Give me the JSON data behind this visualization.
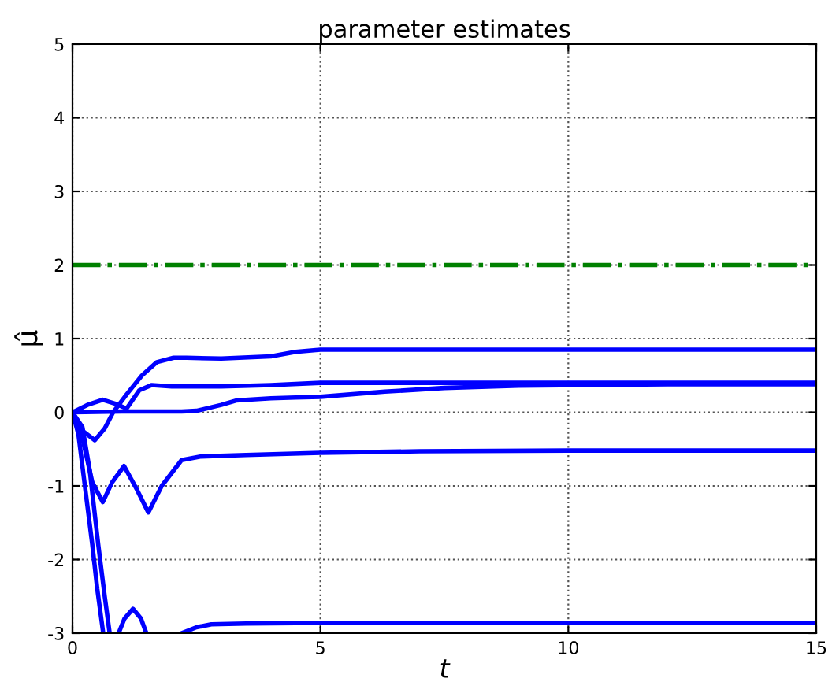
{
  "chart_data": {
    "type": "line",
    "title": "parameter estimates",
    "xlabel": "t",
    "ylabel": "μ̂",
    "xlim": [
      0,
      15
    ],
    "ylim": [
      -3,
      5
    ],
    "xticks": [
      0,
      5,
      10,
      15
    ],
    "yticks": [
      -3,
      -2,
      -1,
      0,
      1,
      2,
      3,
      4,
      5
    ],
    "grid": true,
    "line_style": "solid",
    "marker": "none",
    "ref_lines": [
      {
        "axis": "y",
        "value": 2,
        "color": "#008000",
        "line_style": "dashdot"
      }
    ],
    "series": [
      {
        "color": "#0000ff",
        "x": [
          0,
          0.2,
          0.45,
          0.65,
          0.82,
          1.1,
          1.4,
          1.7,
          2.04,
          2.3,
          3,
          4,
          4.5,
          5,
          7,
          10,
          15
        ],
        "values": [
          0,
          -0.25,
          -0.38,
          -0.22,
          0,
          0.25,
          0.5,
          0.68,
          0.74,
          0.74,
          0.73,
          0.76,
          0.82,
          0.85,
          0.85,
          0.85,
          0.85
        ]
      },
      {
        "color": "#0000ff",
        "x": [
          0,
          0.3,
          0.61,
          0.85,
          1.09,
          1.35,
          1.6,
          2,
          3,
          4,
          5,
          7,
          10,
          15
        ],
        "values": [
          0,
          0.1,
          0.17,
          0.12,
          0.05,
          0.3,
          0.37,
          0.35,
          0.35,
          0.37,
          0.4,
          0.4,
          0.4,
          0.4
        ]
      },
      {
        "color": "#0000ff",
        "x": [
          0,
          1,
          2.2,
          2.5,
          3,
          3.3,
          4,
          4.5,
          5,
          6.3,
          7.5,
          9,
          12,
          15
        ],
        "values": [
          0,
          0.01,
          0.01,
          0.02,
          0.1,
          0.16,
          0.19,
          0.2,
          0.21,
          0.28,
          0.33,
          0.36,
          0.38,
          0.38
        ]
      },
      {
        "color": "#0000ff",
        "x": [
          0,
          0.2,
          0.4,
          0.61,
          0.8,
          1.04,
          1.3,
          1.53,
          1.8,
          2.2,
          2.6,
          3.5,
          5,
          7,
          10,
          15
        ],
        "values": [
          0,
          -0.35,
          -0.95,
          -1.22,
          -0.95,
          -0.73,
          -1.05,
          -1.36,
          -1.0,
          -0.65,
          -0.6,
          -0.58,
          -0.55,
          -0.53,
          -0.52,
          -0.52
        ]
      },
      {
        "color": "#0000ff",
        "x": [
          0,
          0.12,
          0.25,
          0.4,
          0.5,
          0.62,
          0.8,
          0.93,
          1.05,
          1.22,
          1.38,
          1.49,
          1.8,
          2.2,
          2.5,
          2.8,
          3.5,
          5,
          10,
          15
        ],
        "values": [
          0,
          -0.3,
          -1.0,
          -1.8,
          -2.4,
          -3.0,
          null,
          -3.0,
          -2.8,
          -2.67,
          -2.8,
          -3.0,
          null,
          -3.0,
          -2.92,
          -2.88,
          -2.87,
          -2.86,
          -2.86,
          -2.86
        ]
      },
      {
        "color": "#0000ff",
        "x": [
          0,
          0.2,
          0.35,
          0.52,
          0.65,
          0.75
        ],
        "values": [
          0,
          -0.2,
          -0.8,
          -1.8,
          -2.5,
          -3.0
        ]
      }
    ]
  }
}
